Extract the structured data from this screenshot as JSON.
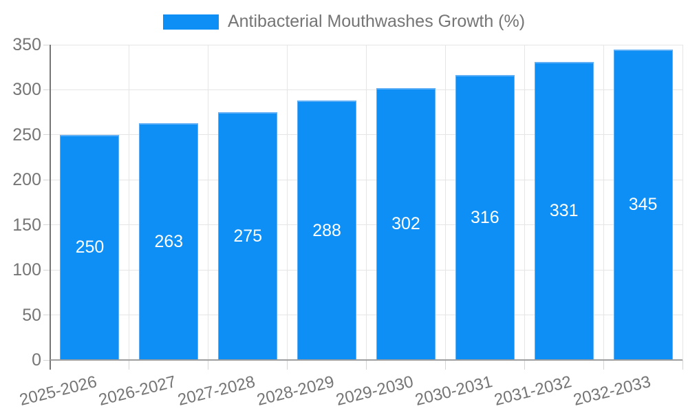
{
  "legend": {
    "label": "Antibacterial Mouthwashes Growth (%)"
  },
  "chart_data": {
    "type": "bar",
    "title": "Antibacterial Mouthwashes Growth (%)",
    "categories": [
      "2025-2026",
      "2026-2027",
      "2027-2028",
      "2028-2029",
      "2029-2030",
      "2030-2031",
      "2031-2032",
      "2032-2033"
    ],
    "values": [
      250,
      263,
      275,
      288,
      302,
      316,
      331,
      345
    ],
    "value_labels_shown": true,
    "xlabel": "",
    "ylabel": "",
    "ylim": [
      0,
      350
    ],
    "yticks": [
      0,
      50,
      100,
      150,
      200,
      250,
      300,
      350
    ],
    "grid": true,
    "legend_position": "top",
    "colors": {
      "bar": "#0d8ff5",
      "bar_border": "#5fb0f6",
      "value_label": "#ffffff",
      "axis_text": "#757575",
      "y_axis_line": "#757575",
      "x_axis_line": "#9e9e9e",
      "gridline": "#e5e5e5",
      "tick": "#d4d4d4",
      "background": "#ffffff"
    }
  }
}
